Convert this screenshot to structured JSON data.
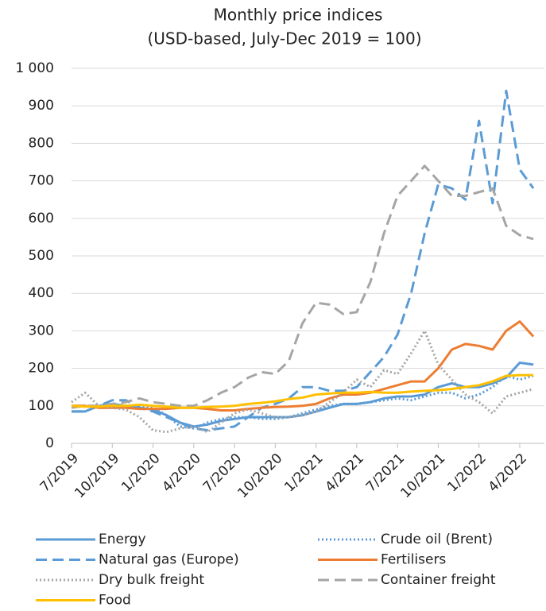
{
  "chart_data": {
    "type": "line",
    "title": "Monthly price indices",
    "subtitle": "(USD-based, July-Dec 2019 = 100)",
    "categories": [
      "7/2019",
      null,
      null,
      "10/2019",
      null,
      null,
      "1/2020",
      null,
      null,
      "4/2020",
      null,
      null,
      "7/2020",
      null,
      null,
      "10/2020",
      null,
      null,
      "1/2021",
      null,
      null,
      "4/2021",
      null,
      null,
      "7/2021",
      null,
      null,
      "10/2021",
      null,
      null,
      "1/2022",
      null,
      null,
      "4/2022",
      null
    ],
    "ylim": [
      0,
      1000
    ],
    "yticks": [
      0,
      100,
      200,
      300,
      400,
      500,
      600,
      700,
      800,
      900,
      {
        "value": 1000,
        "label": "1 000"
      }
    ],
    "grid": true,
    "legend": "bottom",
    "series": [
      {
        "name": "Energy",
        "color": "#5b9bd5",
        "dash": "solid",
        "values": [
          85,
          85,
          100,
          105,
          100,
          95,
          90,
          75,
          55,
          45,
          50,
          60,
          65,
          70,
          70,
          70,
          70,
          75,
          85,
          95,
          105,
          105,
          110,
          120,
          125,
          125,
          130,
          150,
          160,
          150,
          150,
          160,
          175,
          215,
          210
        ]
      },
      {
        "name": "Crude oil (Brent)",
        "color": "#5b9bd5",
        "dash": "dotted",
        "values": [
          100,
          100,
          95,
          95,
          100,
          100,
          95,
          75,
          45,
          40,
          55,
          65,
          70,
          70,
          65,
          65,
          70,
          80,
          90,
          100,
          105,
          105,
          110,
          115,
          120,
          115,
          125,
          135,
          135,
          120,
          130,
          150,
          180,
          170,
          180
        ]
      },
      {
        "name": "Natural gas (Europe)",
        "color": "#5b9bd5",
        "dash": "dashed",
        "values": [
          85,
          85,
          100,
          115,
          115,
          95,
          85,
          70,
          55,
          40,
          35,
          40,
          45,
          70,
          95,
          105,
          120,
          150,
          150,
          140,
          140,
          150,
          190,
          230,
          290,
          400,
          560,
          690,
          680,
          650,
          860,
          640,
          940,
          730,
          680
        ]
      },
      {
        "name": "Fertilisers",
        "color": "#ed7d31",
        "dash": "solid",
        "values": [
          100,
          100,
          95,
          95,
          95,
          92,
          92,
          92,
          95,
          95,
          92,
          88,
          88,
          92,
          95,
          97,
          98,
          100,
          105,
          120,
          130,
          130,
          135,
          145,
          155,
          165,
          165,
          200,
          250,
          265,
          260,
          250,
          300,
          325,
          285
        ]
      },
      {
        "name": "Dry bulk freight",
        "color": "#a5a5a5",
        "dash": "dotted",
        "values": [
          110,
          135,
          100,
          95,
          90,
          70,
          35,
          30,
          40,
          45,
          30,
          55,
          80,
          90,
          80,
          70,
          70,
          75,
          85,
          110,
          135,
          170,
          150,
          195,
          185,
          240,
          300,
          210,
          170,
          130,
          110,
          80,
          125,
          135,
          145
        ]
      },
      {
        "name": "Container freight",
        "color": "#a5a5a5",
        "dash": "dashed",
        "values": [
          95,
          100,
          100,
          105,
          110,
          120,
          110,
          105,
          100,
          100,
          115,
          135,
          150,
          175,
          190,
          185,
          220,
          320,
          375,
          370,
          345,
          350,
          430,
          560,
          660,
          700,
          740,
          700,
          660,
          660,
          670,
          680,
          580,
          555,
          545
        ]
      },
      {
        "name": "Food",
        "color": "#ffc000",
        "dash": "solid",
        "values": [
          100,
          98,
          98,
          100,
          100,
          103,
          100,
          98,
          95,
          95,
          97,
          98,
          100,
          105,
          108,
          112,
          118,
          122,
          130,
          133,
          135,
          135,
          137,
          135,
          135,
          138,
          140,
          142,
          145,
          150,
          155,
          165,
          180,
          182,
          182
        ]
      }
    ]
  }
}
